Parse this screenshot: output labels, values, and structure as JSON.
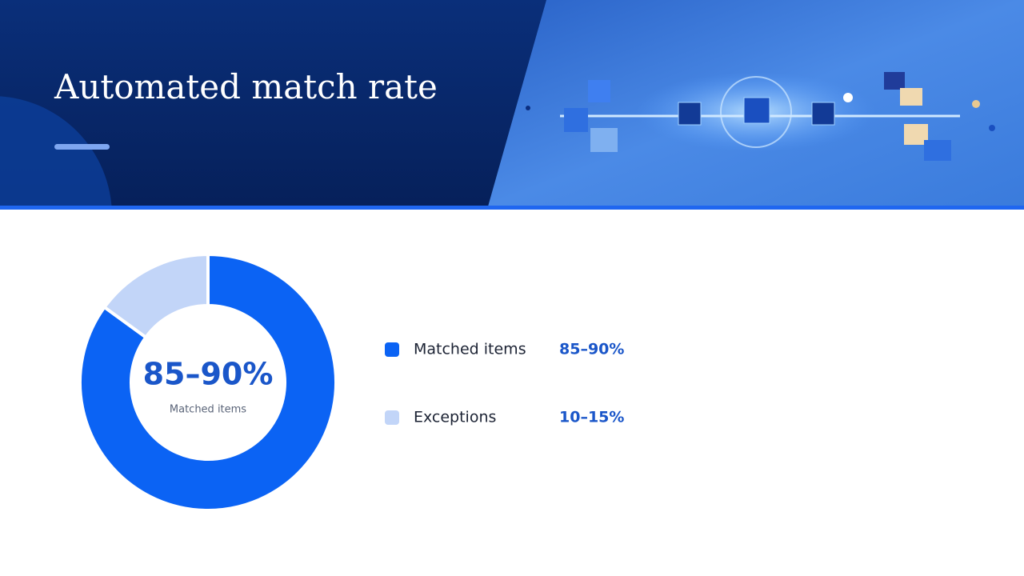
{
  "chart_data": {
    "type": "pie",
    "donut": true,
    "title": "Automated match rate",
    "categories": [
      "Matched items",
      "Exceptions"
    ],
    "values": [
      85,
      15
    ],
    "value_labels": [
      "85–90%",
      "10–15%"
    ],
    "colors": [
      "#0b63f4",
      "#c2d5f8"
    ]
  }
}
